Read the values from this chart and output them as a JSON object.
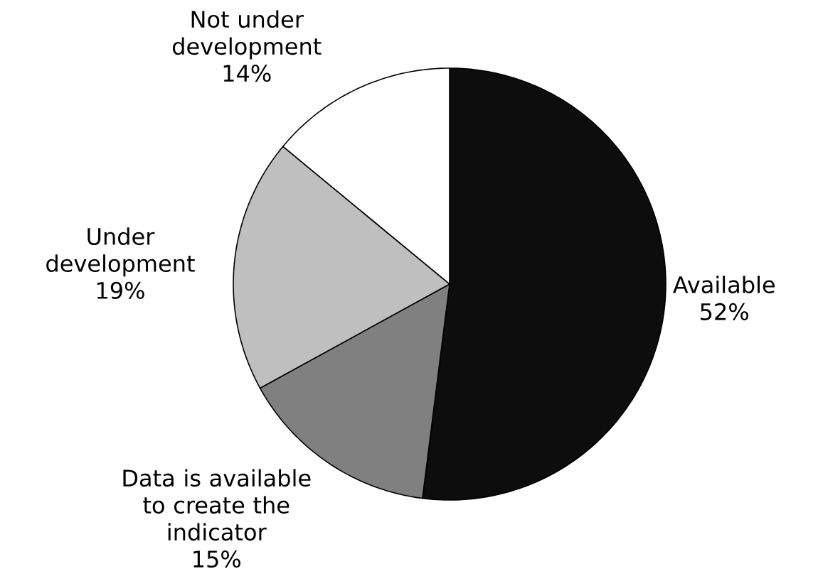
{
  "chart_data": {
    "type": "pie",
    "categories": [
      "Available",
      "Data is available to create the indicator",
      "Under development",
      "Not under development"
    ],
    "values": [
      52,
      15,
      19,
      14
    ],
    "colors": [
      "#0d0d0d",
      "#808080",
      "#bfbfbf",
      "#ffffff"
    ],
    "value_labels": [
      "52%",
      "15%",
      "19%",
      "14%"
    ]
  }
}
